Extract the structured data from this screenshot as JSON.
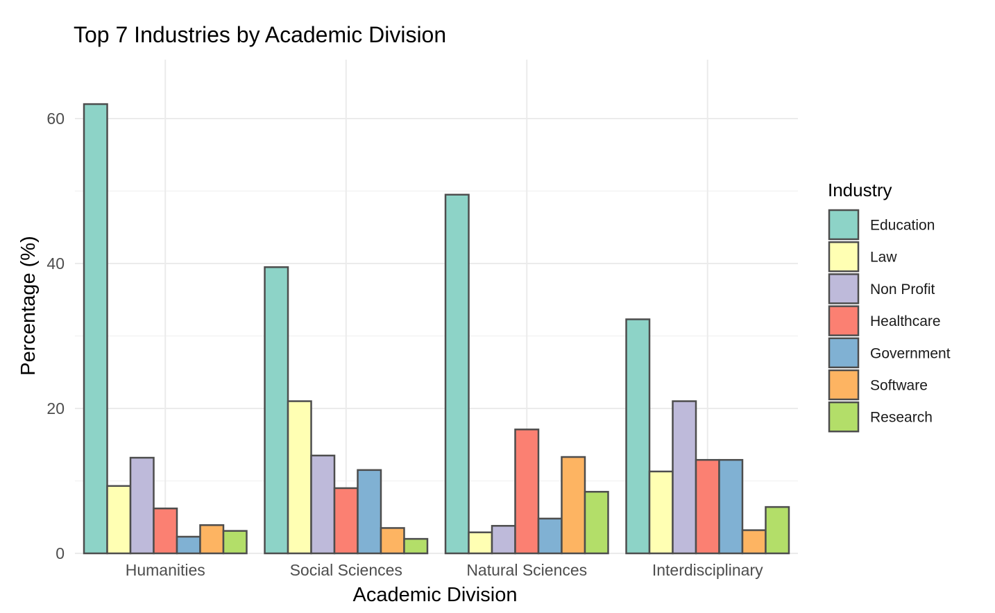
{
  "chart_data": {
    "type": "bar",
    "title": "Top 7 Industries by Academic Division",
    "xlabel": "Academic Division",
    "ylabel": "Percentage (%)",
    "ylim": [
      0,
      68
    ],
    "yticks": [
      0,
      20,
      40,
      60
    ],
    "grid": true,
    "legend_title": "Industry",
    "legend_position": "right",
    "categories": [
      "Humanities",
      "Social Sciences",
      "Natural Sciences",
      "Interdisciplinary"
    ],
    "series": [
      {
        "name": "Education",
        "color": "#8dd3c7",
        "values": [
          62.0,
          39.5,
          49.5,
          32.3
        ]
      },
      {
        "name": "Law",
        "color": "#ffffb3",
        "values": [
          9.3,
          21.0,
          2.9,
          11.3
        ]
      },
      {
        "name": "Non Profit",
        "color": "#bebada",
        "values": [
          13.2,
          13.5,
          3.8,
          21.0
        ]
      },
      {
        "name": "Healthcare",
        "color": "#fb8072",
        "values": [
          6.2,
          9.0,
          17.1,
          12.9
        ]
      },
      {
        "name": "Government",
        "color": "#80b1d3",
        "values": [
          2.3,
          11.5,
          4.8,
          12.9
        ]
      },
      {
        "name": "Software",
        "color": "#fdb462",
        "values": [
          3.9,
          3.5,
          13.3,
          3.2
        ]
      },
      {
        "name": "Research",
        "color": "#b3de69",
        "values": [
          3.1,
          2.0,
          8.5,
          6.4
        ]
      }
    ]
  }
}
